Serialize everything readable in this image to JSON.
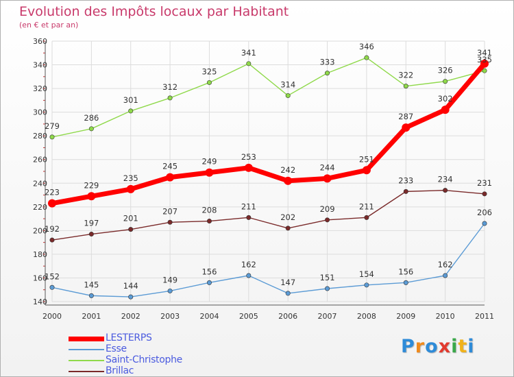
{
  "title": "Evolution des Impôts locaux par Habitant",
  "subtitle": "(en € et par an)",
  "logo": {
    "text": "Proxiti",
    "letters": [
      "P",
      "r",
      "o",
      "x",
      "i",
      "t",
      "i"
    ],
    "colors": [
      "#2e8bd8",
      "#f08a1c",
      "#2e8bd8",
      "#e23a2e",
      "#3aa84a",
      "#f0b21c",
      "#2e8bd8"
    ]
  },
  "chart_data": {
    "type": "line",
    "categories": [
      "2000",
      "2001",
      "2002",
      "2003",
      "2004",
      "2005",
      "2006",
      "2007",
      "2008",
      "2009",
      "2010",
      "2011"
    ],
    "ylim": [
      140,
      360
    ],
    "yticks": [
      140,
      160,
      180,
      200,
      220,
      240,
      260,
      280,
      300,
      320,
      340,
      360
    ],
    "grid": true,
    "legend_position": "bottom-left",
    "series": [
      {
        "name": "LESTERPS",
        "color": "#ff0000",
        "values": [
          223,
          229,
          235,
          245,
          249,
          253,
          242,
          244,
          251,
          287,
          302,
          341
        ],
        "thick": true
      },
      {
        "name": "Esse",
        "color": "#5b9bd5",
        "values": [
          152,
          145,
          144,
          149,
          156,
          162,
          147,
          151,
          154,
          156,
          162,
          206
        ]
      },
      {
        "name": "Saint-Christophe",
        "color": "#8fd94a",
        "values": [
          279,
          286,
          301,
          312,
          325,
          341,
          314,
          333,
          346,
          322,
          326,
          335
        ]
      },
      {
        "name": "Brillac",
        "color": "#7a2a2a",
        "values": [
          192,
          197,
          201,
          207,
          208,
          211,
          202,
          209,
          211,
          233,
          234,
          231
        ]
      }
    ]
  }
}
